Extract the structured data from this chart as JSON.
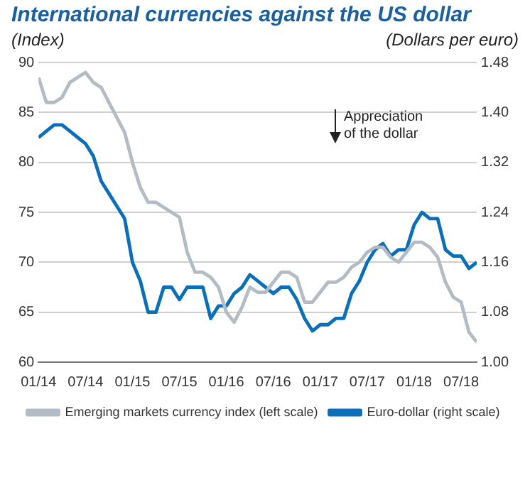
{
  "chart_data": {
    "type": "line",
    "title": "International currencies against the US dollar",
    "ylabel": "(Index)",
    "y2label": "(Dollars per euro)",
    "annotations": [
      "Appreciation of the dollar"
    ],
    "x": [
      "2014-01",
      "2014-02",
      "2014-03",
      "2014-04",
      "2014-05",
      "2014-06",
      "2014-07",
      "2014-08",
      "2014-09",
      "2014-10",
      "2014-11",
      "2014-12",
      "2015-01",
      "2015-02",
      "2015-03",
      "2015-04",
      "2015-05",
      "2015-06",
      "2015-07",
      "2015-08",
      "2015-09",
      "2015-10",
      "2015-11",
      "2015-12",
      "2016-01",
      "2016-02",
      "2016-03",
      "2016-04",
      "2016-05",
      "2016-06",
      "2016-07",
      "2016-08",
      "2016-09",
      "2016-10",
      "2016-11",
      "2016-12",
      "2017-01",
      "2017-02",
      "2017-03",
      "2017-04",
      "2017-05",
      "2017-06",
      "2017-07",
      "2017-08",
      "2017-09",
      "2017-10",
      "2017-11",
      "2017-12",
      "2018-01",
      "2018-02",
      "2018-03",
      "2018-04",
      "2018-05",
      "2018-06",
      "2018-07",
      "2018-08",
      "2018-09"
    ],
    "series": [
      {
        "name": "Emerging markets currency index (left scale)",
        "color": "#b3bcc4",
        "values": [
          88.5,
          86,
          86,
          86.5,
          88,
          88.5,
          89,
          88,
          87.5,
          86,
          84.5,
          83,
          80,
          77.5,
          76,
          76,
          75.5,
          75,
          74.5,
          71,
          69,
          69,
          68.5,
          67.5,
          65,
          64,
          65.5,
          67.5,
          67,
          67,
          68,
          69,
          69,
          68.5,
          66,
          66,
          67,
          68,
          68,
          68.5,
          69.5,
          70,
          71,
          71.5,
          71.5,
          70.5,
          70,
          71,
          72,
          72,
          71.5,
          70.5,
          68,
          66.5,
          66,
          63,
          62
        ]
      },
      {
        "name": "Euro-dollar (right scale)",
        "color": "#0a6fb8",
        "axis": "y2",
        "values": [
          1.36,
          1.37,
          1.38,
          1.38,
          1.37,
          1.36,
          1.35,
          1.33,
          1.29,
          1.27,
          1.25,
          1.23,
          1.16,
          1.13,
          1.08,
          1.08,
          1.12,
          1.12,
          1.1,
          1.12,
          1.12,
          1.12,
          1.07,
          1.09,
          1.09,
          1.11,
          1.12,
          1.14,
          1.13,
          1.12,
          1.11,
          1.12,
          1.12,
          1.1,
          1.07,
          1.05,
          1.06,
          1.06,
          1.07,
          1.07,
          1.11,
          1.13,
          1.16,
          1.18,
          1.19,
          1.17,
          1.18,
          1.18,
          1.22,
          1.24,
          1.23,
          1.23,
          1.18,
          1.17,
          1.17,
          1.15,
          1.16
        ]
      }
    ],
    "xlim": [
      "2014-01",
      "2018-09"
    ],
    "xticks": [
      {
        "value": "2014-01",
        "label": "01/14"
      },
      {
        "value": "2014-07",
        "label": "07/14"
      },
      {
        "value": "2015-01",
        "label": "01/15"
      },
      {
        "value": "2015-07",
        "label": "07/15"
      },
      {
        "value": "2016-01",
        "label": "01/16"
      },
      {
        "value": "2016-07",
        "label": "07/16"
      },
      {
        "value": "2017-01",
        "label": "01/17"
      },
      {
        "value": "2017-07",
        "label": "07/17"
      },
      {
        "value": "2018-01",
        "label": "01/18"
      },
      {
        "value": "2018-07",
        "label": "07/18"
      }
    ],
    "ylim": [
      60,
      90
    ],
    "yticks": [
      60,
      65,
      70,
      75,
      80,
      85,
      90
    ],
    "y2lim": [
      1.0,
      1.48
    ],
    "y2ticks": [
      {
        "value": 1.0,
        "label": "1.00"
      },
      1.08,
      1.16,
      1.24,
      1.32,
      {
        "value": 1.4,
        "label": "1.40"
      },
      1.48
    ],
    "grid": "y",
    "legend": "bottom",
    "marker": "none",
    "line_style": "solid"
  }
}
